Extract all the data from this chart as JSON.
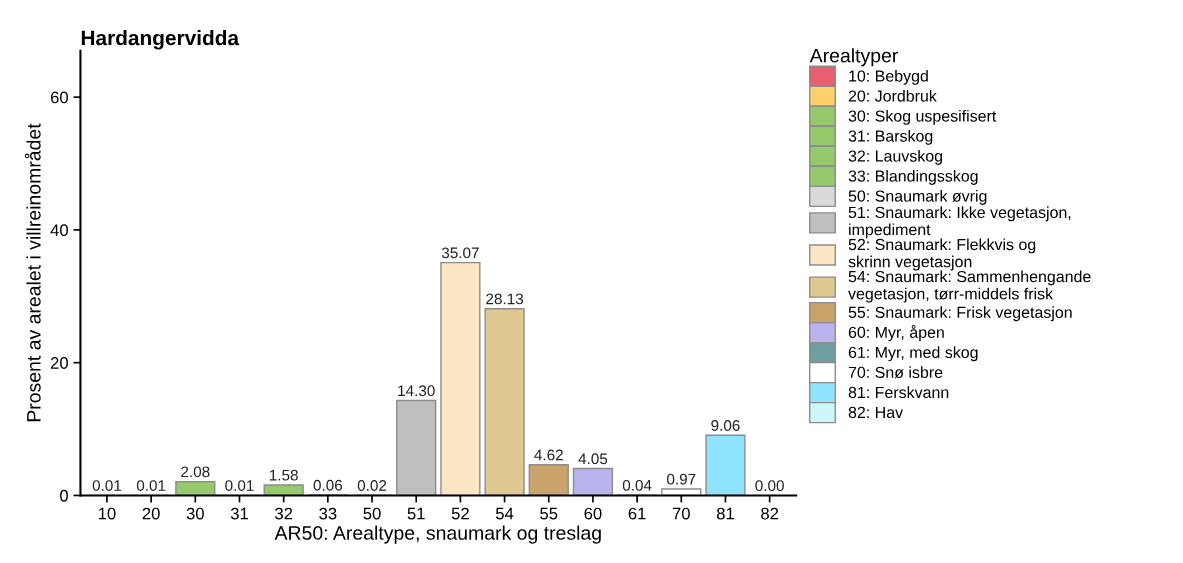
{
  "chart_data": {
    "type": "bar",
    "title": "Hardangervidda",
    "xlabel": "AR50: Arealtype, snaumark og treslag",
    "ylabel": "Prosent av arealet i villreinområdet",
    "legend_title": "Arealtyper",
    "categories": [
      "10",
      "20",
      "30",
      "31",
      "32",
      "33",
      "50",
      "51",
      "52",
      "54",
      "55",
      "60",
      "61",
      "70",
      "81",
      "82"
    ],
    "ylim": [
      0,
      67
    ],
    "yticks": [
      0,
      20,
      40,
      60
    ],
    "grid": false,
    "legend": "right",
    "series": [
      {
        "name": "10: Bebygd",
        "color": "#e8606f",
        "values": [
          0.01,
          null,
          null,
          null,
          null,
          null,
          null,
          null,
          null,
          null,
          null,
          null,
          null,
          null,
          null,
          null
        ],
        "value_labels": [
          "0.01",
          null,
          null,
          null,
          null,
          null,
          null,
          null,
          null,
          null,
          null,
          null,
          null,
          null,
          null,
          null
        ]
      },
      {
        "name": "20: Jordbruk",
        "color": "#fdd06a",
        "values": [
          null,
          0.01,
          null,
          null,
          null,
          null,
          null,
          null,
          null,
          null,
          null,
          null,
          null,
          null,
          null,
          null
        ],
        "value_labels": [
          null,
          "0.01",
          null,
          null,
          null,
          null,
          null,
          null,
          null,
          null,
          null,
          null,
          null,
          null,
          null,
          null
        ]
      },
      {
        "name": "30: Skog uspesifisert",
        "color": "#96c96b",
        "values": [
          null,
          null,
          2.08,
          null,
          null,
          null,
          null,
          null,
          null,
          null,
          null,
          null,
          null,
          null,
          null,
          null
        ],
        "value_labels": [
          null,
          null,
          "2.08",
          null,
          null,
          null,
          null,
          null,
          null,
          null,
          null,
          null,
          null,
          null,
          null,
          null
        ]
      },
      {
        "name": "31: Barskog",
        "color": "#96c96b",
        "values": [
          null,
          null,
          null,
          0.01,
          null,
          null,
          null,
          null,
          null,
          null,
          null,
          null,
          null,
          null,
          null,
          null
        ],
        "value_labels": [
          null,
          null,
          null,
          "0.01",
          null,
          null,
          null,
          null,
          null,
          null,
          null,
          null,
          null,
          null,
          null,
          null
        ]
      },
      {
        "name": "32: Lauvskog",
        "color": "#96c96b",
        "values": [
          null,
          null,
          null,
          null,
          1.58,
          null,
          null,
          null,
          null,
          null,
          null,
          null,
          null,
          null,
          null,
          null
        ],
        "value_labels": [
          null,
          null,
          null,
          null,
          "1.58",
          null,
          null,
          null,
          null,
          null,
          null,
          null,
          null,
          null,
          null,
          null
        ]
      },
      {
        "name": "33: Blandingsskog",
        "color": "#96c96b",
        "values": [
          null,
          null,
          null,
          null,
          null,
          0.06,
          null,
          null,
          null,
          null,
          null,
          null,
          null,
          null,
          null,
          null
        ],
        "value_labels": [
          null,
          null,
          null,
          null,
          null,
          "0.06",
          null,
          null,
          null,
          null,
          null,
          null,
          null,
          null,
          null,
          null
        ]
      },
      {
        "name": "50: Snaumark øvrig",
        "color": "#d9d9d9",
        "values": [
          null,
          null,
          null,
          null,
          null,
          null,
          0.02,
          null,
          null,
          null,
          null,
          null,
          null,
          null,
          null,
          null
        ],
        "value_labels": [
          null,
          null,
          null,
          null,
          null,
          null,
          "0.02",
          null,
          null,
          null,
          null,
          null,
          null,
          null,
          null,
          null
        ]
      },
      {
        "name": "51: Snaumark: Ikke vegetasjon,\nimpediment",
        "color": "#bfbfbf",
        "values": [
          null,
          null,
          null,
          null,
          null,
          null,
          null,
          14.3,
          null,
          null,
          null,
          null,
          null,
          null,
          null,
          null
        ],
        "value_labels": [
          null,
          null,
          null,
          null,
          null,
          null,
          null,
          "14.30",
          null,
          null,
          null,
          null,
          null,
          null,
          null,
          null
        ]
      },
      {
        "name": "52: Snaumark: Flekkvis og\nskrinn vegetasjon",
        "color": "#fde6c3",
        "values": [
          null,
          null,
          null,
          null,
          null,
          null,
          null,
          null,
          35.07,
          null,
          null,
          null,
          null,
          null,
          null,
          null
        ],
        "value_labels": [
          null,
          null,
          null,
          null,
          null,
          null,
          null,
          null,
          "35.07",
          null,
          null,
          null,
          null,
          null,
          null,
          null
        ]
      },
      {
        "name": "54: Snaumark: Sammenhengande\nvegetasjon, tørr-middels frisk",
        "color": "#e0c892",
        "values": [
          null,
          null,
          null,
          null,
          null,
          null,
          null,
          null,
          null,
          28.13,
          null,
          null,
          null,
          null,
          null,
          null
        ],
        "value_labels": [
          null,
          null,
          null,
          null,
          null,
          null,
          null,
          null,
          null,
          "28.13",
          null,
          null,
          null,
          null,
          null,
          null
        ]
      },
      {
        "name": "55: Snaumark: Frisk vegetasjon",
        "color": "#c9a36a",
        "values": [
          null,
          null,
          null,
          null,
          null,
          null,
          null,
          null,
          null,
          null,
          4.62,
          null,
          null,
          null,
          null,
          null
        ],
        "value_labels": [
          null,
          null,
          null,
          null,
          null,
          null,
          null,
          null,
          null,
          null,
          "4.62",
          null,
          null,
          null,
          null,
          null
        ]
      },
      {
        "name": "60: Myr, åpen",
        "color": "#b9b3ee",
        "values": [
          null,
          null,
          null,
          null,
          null,
          null,
          null,
          null,
          null,
          null,
          null,
          4.05,
          null,
          null,
          null,
          null
        ],
        "value_labels": [
          null,
          null,
          null,
          null,
          null,
          null,
          null,
          null,
          null,
          null,
          null,
          "4.05",
          null,
          null,
          null,
          null
        ]
      },
      {
        "name": "61: Myr, med skog",
        "color": "#6f9ea1",
        "values": [
          null,
          null,
          null,
          null,
          null,
          null,
          null,
          null,
          null,
          null,
          null,
          null,
          0.04,
          null,
          null,
          null
        ],
        "value_labels": [
          null,
          null,
          null,
          null,
          null,
          null,
          null,
          null,
          null,
          null,
          null,
          null,
          "0.04",
          null,
          null,
          null
        ]
      },
      {
        "name": "70: Snø isbre",
        "color": "#ffffff",
        "values": [
          null,
          null,
          null,
          null,
          null,
          null,
          null,
          null,
          null,
          null,
          null,
          null,
          null,
          0.97,
          null,
          null
        ],
        "value_labels": [
          null,
          null,
          null,
          null,
          null,
          null,
          null,
          null,
          null,
          null,
          null,
          null,
          null,
          "0.97",
          null,
          null
        ]
      },
      {
        "name": "81: Ferskvann",
        "color": "#8fe3fc",
        "values": [
          null,
          null,
          null,
          null,
          null,
          null,
          null,
          null,
          null,
          null,
          null,
          null,
          null,
          null,
          9.06,
          null
        ],
        "value_labels": [
          null,
          null,
          null,
          null,
          null,
          null,
          null,
          null,
          null,
          null,
          null,
          null,
          null,
          null,
          "9.06",
          null
        ]
      },
      {
        "name": "82: Hav",
        "color": "#cdf8fb",
        "values": [
          null,
          null,
          null,
          null,
          null,
          null,
          null,
          null,
          null,
          null,
          null,
          null,
          null,
          null,
          null,
          0.0
        ],
        "value_labels": [
          null,
          null,
          null,
          null,
          null,
          null,
          null,
          null,
          null,
          null,
          null,
          null,
          null,
          null,
          null,
          "0.00"
        ]
      }
    ]
  }
}
